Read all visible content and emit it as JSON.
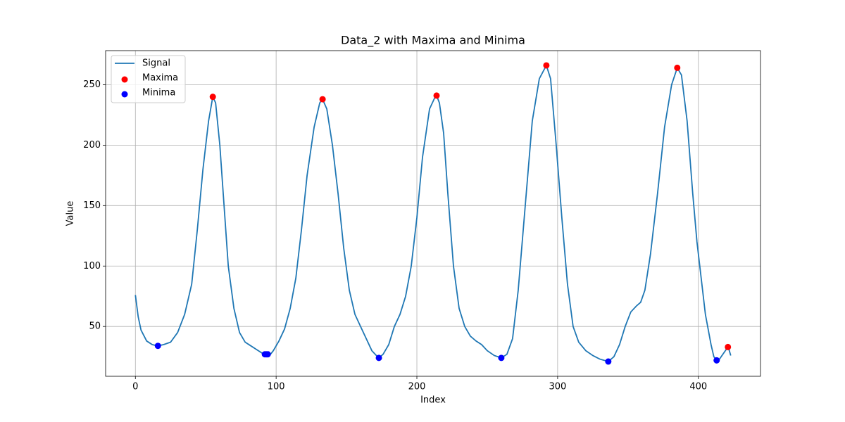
{
  "chart_data": {
    "type": "line",
    "title": "Data_2 with Maxima and Minima",
    "x_label": "Index",
    "y_label": "Value",
    "xlim": [
      -21.15,
      444.15
    ],
    "ylim": [
      8.8,
      278.2
    ],
    "xticks": [
      0,
      100,
      200,
      300,
      400
    ],
    "yticks": [
      50,
      100,
      150,
      200,
      250
    ],
    "grid": true,
    "legend": "upper left",
    "series": [
      {
        "name": "Signal",
        "type": "line",
        "color": "#1f77b4",
        "x": [
          0,
          2,
          4,
          8,
          12,
          16,
          20,
          25,
          30,
          35,
          40,
          44,
          48,
          52,
          55,
          57,
          60,
          63,
          66,
          70,
          74,
          78,
          82,
          86,
          90,
          93,
          96,
          98,
          102,
          106,
          110,
          114,
          118,
          122,
          127,
          131,
          133,
          136,
          140,
          144,
          148,
          152,
          156,
          160,
          164,
          168,
          172,
          173,
          176,
          180,
          184,
          188,
          192,
          196,
          200,
          204,
          209,
          213,
          214,
          216,
          219,
          222,
          226,
          230,
          234,
          238,
          242,
          246,
          250,
          255,
          260,
          264,
          268,
          272,
          277,
          282,
          287,
          292,
          295,
          299,
          303,
          307,
          311,
          315,
          320,
          325,
          330,
          336,
          340,
          344,
          348,
          352,
          356,
          359,
          362,
          366,
          371,
          376,
          381,
          385,
          388,
          392,
          396,
          399,
          402,
          405,
          409,
          411,
          413,
          415,
          418,
          421,
          422,
          423
        ],
        "values": [
          76,
          58,
          47,
          38,
          35,
          34,
          35,
          37,
          45,
          60,
          85,
          130,
          180,
          220,
          240,
          235,
          200,
          150,
          100,
          65,
          45,
          37,
          34,
          31,
          28,
          27,
          27,
          30,
          38,
          48,
          65,
          90,
          130,
          175,
          215,
          235,
          238,
          230,
          200,
          160,
          115,
          80,
          60,
          50,
          40,
          30,
          25,
          24,
          27,
          35,
          50,
          60,
          75,
          100,
          140,
          190,
          230,
          240,
          241,
          235,
          210,
          160,
          100,
          65,
          50,
          42,
          38,
          35,
          30,
          26,
          24,
          27,
          40,
          80,
          150,
          220,
          255,
          266,
          255,
          200,
          140,
          85,
          50,
          37,
          30,
          26,
          23,
          21,
          25,
          35,
          50,
          62,
          67,
          70,
          80,
          110,
          160,
          215,
          250,
          264,
          258,
          220,
          160,
          120,
          90,
          60,
          35,
          25,
          22,
          23,
          28,
          33,
          30,
          26
        ]
      },
      {
        "name": "Maxima",
        "type": "scatter",
        "color": "#ff0000",
        "x": [
          55,
          133,
          214,
          292,
          385,
          421
        ],
        "values": [
          240,
          238,
          241,
          266,
          264,
          33
        ]
      },
      {
        "name": "Minima",
        "type": "scatter",
        "color": "#0000ff",
        "x": [
          16,
          92,
          93,
          94,
          173,
          260,
          336,
          413
        ],
        "values": [
          34,
          27,
          27,
          27,
          24,
          24,
          21,
          22
        ]
      }
    ]
  }
}
